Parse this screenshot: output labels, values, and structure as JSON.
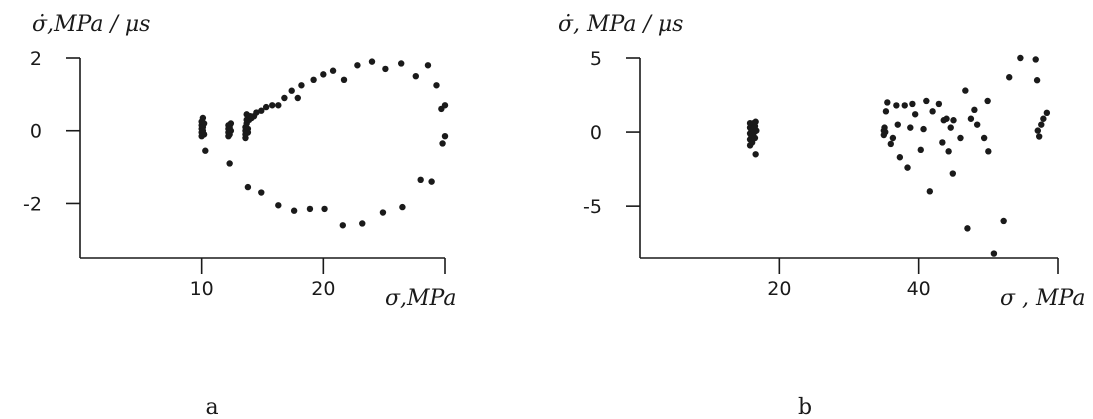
{
  "chart_data": [
    {
      "type": "scatter",
      "ylabel": "σ̇,MPa / μs",
      "xlabel": "σ,MPa",
      "caption": "a",
      "xlim": [
        0,
        30
      ],
      "ylim": [
        -3.5,
        2
      ],
      "xticks": [
        10,
        20
      ],
      "yticks": [
        2,
        0,
        -2
      ],
      "points": [
        [
          10.0,
          -0.15
        ],
        [
          10.0,
          -0.05
        ],
        [
          10.0,
          0.05
        ],
        [
          10.0,
          0.15
        ],
        [
          10.0,
          0.25
        ],
        [
          10.1,
          0.35
        ],
        [
          10.1,
          0.1
        ],
        [
          10.1,
          0.0
        ],
        [
          10.2,
          -0.1
        ],
        [
          10.2,
          0.2
        ],
        [
          10.3,
          -0.55
        ],
        [
          12.2,
          -0.15
        ],
        [
          12.2,
          -0.05
        ],
        [
          12.2,
          0.05
        ],
        [
          12.2,
          0.15
        ],
        [
          12.3,
          0.1
        ],
        [
          12.3,
          -0.1
        ],
        [
          12.4,
          0.0
        ],
        [
          12.4,
          0.2
        ],
        [
          12.3,
          -0.9
        ],
        [
          13.6,
          -0.2
        ],
        [
          13.6,
          -0.1
        ],
        [
          13.6,
          0.0
        ],
        [
          13.6,
          0.1
        ],
        [
          13.7,
          0.2
        ],
        [
          13.7,
          0.3
        ],
        [
          13.7,
          0.45
        ],
        [
          13.8,
          0.05
        ],
        [
          13.8,
          -0.05
        ],
        [
          13.9,
          0.3
        ],
        [
          14.0,
          0.4
        ],
        [
          14.1,
          0.35
        ],
        [
          14.3,
          0.4
        ],
        [
          14.5,
          0.5
        ],
        [
          14.9,
          0.55
        ],
        [
          15.3,
          0.65
        ],
        [
          15.8,
          0.7
        ],
        [
          16.3,
          0.7
        ],
        [
          16.8,
          0.9
        ],
        [
          17.4,
          1.1
        ],
        [
          17.9,
          0.9
        ],
        [
          18.2,
          1.25
        ],
        [
          19.2,
          1.4
        ],
        [
          20.0,
          1.55
        ],
        [
          20.8,
          1.65
        ],
        [
          21.7,
          1.4
        ],
        [
          22.8,
          1.8
        ],
        [
          24.0,
          1.9
        ],
        [
          25.1,
          1.7
        ],
        [
          26.4,
          1.85
        ],
        [
          27.6,
          1.5
        ],
        [
          28.6,
          1.8
        ],
        [
          29.3,
          1.25
        ],
        [
          29.7,
          0.6
        ],
        [
          30.0,
          0.7
        ],
        [
          30.0,
          -0.15
        ],
        [
          29.8,
          -0.35
        ],
        [
          28.9,
          -1.4
        ],
        [
          28.0,
          -1.35
        ],
        [
          26.5,
          -2.1
        ],
        [
          24.9,
          -2.25
        ],
        [
          23.2,
          -2.55
        ],
        [
          21.6,
          -2.6
        ],
        [
          20.1,
          -2.15
        ],
        [
          18.9,
          -2.15
        ],
        [
          17.6,
          -2.2
        ],
        [
          16.3,
          -2.05
        ],
        [
          14.9,
          -1.7
        ],
        [
          13.8,
          -1.55
        ]
      ]
    },
    {
      "type": "scatter",
      "ylabel": "σ̇, MPa / μs",
      "xlabel": "σ , MPa",
      "caption": "b",
      "xlim": [
        0,
        60
      ],
      "ylim": [
        -8.5,
        5
      ],
      "xticks": [
        20,
        40
      ],
      "yticks": [
        5,
        0,
        -5
      ],
      "points": [
        [
          15.8,
          -0.9
        ],
        [
          15.8,
          -0.5
        ],
        [
          15.8,
          -0.1
        ],
        [
          15.8,
          0.3
        ],
        [
          15.8,
          0.6
        ],
        [
          16.0,
          -0.3
        ],
        [
          16.0,
          0.1
        ],
        [
          16.0,
          0.5
        ],
        [
          16.1,
          -0.7
        ],
        [
          16.2,
          0.2
        ],
        [
          16.2,
          -0.2
        ],
        [
          16.3,
          0.6
        ],
        [
          16.4,
          0.0
        ],
        [
          16.5,
          0.4
        ],
        [
          16.5,
          -0.4
        ],
        [
          16.6,
          0.7
        ],
        [
          16.7,
          0.1
        ],
        [
          16.6,
          -1.5
        ],
        [
          35.0,
          -0.2
        ],
        [
          35.0,
          0.1
        ],
        [
          35.1,
          0.3
        ],
        [
          35.2,
          0.0
        ],
        [
          35.3,
          1.4
        ],
        [
          35.5,
          2.0
        ],
        [
          36.0,
          -0.8
        ],
        [
          36.3,
          -0.4
        ],
        [
          36.8,
          1.8
        ],
        [
          37.0,
          0.5
        ],
        [
          37.3,
          -1.7
        ],
        [
          38.0,
          1.8
        ],
        [
          38.4,
          -2.4
        ],
        [
          38.8,
          0.3
        ],
        [
          39.1,
          1.9
        ],
        [
          39.5,
          1.2
        ],
        [
          40.3,
          -1.2
        ],
        [
          40.7,
          0.2
        ],
        [
          41.1,
          2.1
        ],
        [
          41.6,
          -4.0
        ],
        [
          42.0,
          1.4
        ],
        [
          42.9,
          1.9
        ],
        [
          43.4,
          -0.7
        ],
        [
          43.6,
          0.8
        ],
        [
          44.0,
          0.9
        ],
        [
          44.3,
          -1.3
        ],
        [
          44.6,
          0.3
        ],
        [
          44.9,
          -2.8
        ],
        [
          45.0,
          0.8
        ],
        [
          46.0,
          -0.4
        ],
        [
          46.7,
          2.8
        ],
        [
          47.0,
          -6.5
        ],
        [
          47.5,
          0.9
        ],
        [
          48.0,
          1.5
        ],
        [
          48.4,
          0.5
        ],
        [
          49.4,
          -0.4
        ],
        [
          49.9,
          2.1
        ],
        [
          50.0,
          -1.3
        ],
        [
          50.8,
          -8.2
        ],
        [
          52.2,
          -6.0
        ],
        [
          53.0,
          3.7
        ],
        [
          54.6,
          5.0
        ],
        [
          56.8,
          4.9
        ],
        [
          57.0,
          3.5
        ],
        [
          57.1,
          0.1
        ],
        [
          57.3,
          -0.3
        ],
        [
          57.6,
          0.5
        ],
        [
          57.9,
          0.9
        ],
        [
          58.4,
          1.3
        ]
      ]
    }
  ]
}
